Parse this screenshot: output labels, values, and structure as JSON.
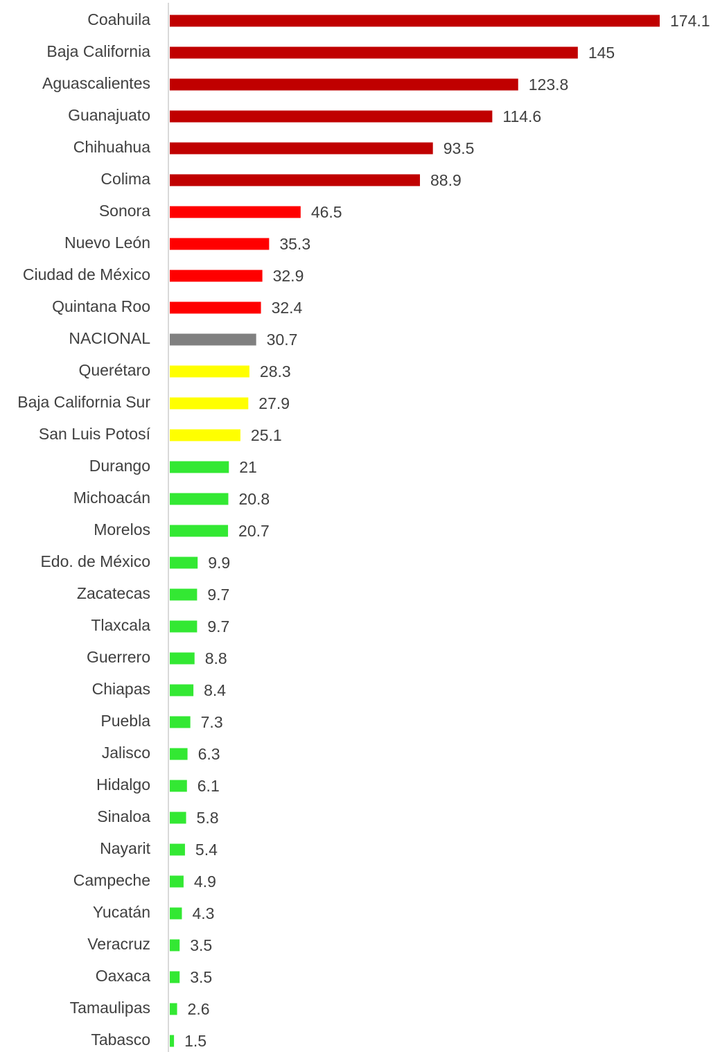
{
  "chart_data": {
    "type": "bar",
    "orientation": "horizontal",
    "categories": [
      "Coahuila",
      "Baja California",
      "Aguascalientes",
      "Guanajuato",
      "Chihuahua",
      "Colima",
      "Sonora",
      "Nuevo León",
      "Ciudad de México",
      "Quintana Roo",
      "NACIONAL",
      "Querétaro",
      "Baja California Sur",
      "San Luis Potosí",
      "Durango",
      "Michoacán",
      "Morelos",
      "Edo. de México",
      "Zacatecas",
      "Tlaxcala",
      "Guerrero",
      "Chiapas",
      "Puebla",
      "Jalisco",
      "Hidalgo",
      "Sinaloa",
      "Nayarit",
      "Campeche",
      "Yucatán",
      "Veracruz",
      "Oaxaca",
      "Tamaulipas",
      "Tabasco"
    ],
    "values": [
      174.1,
      145,
      123.8,
      114.6,
      93.5,
      88.9,
      46.5,
      35.3,
      32.9,
      32.4,
      30.7,
      28.3,
      27.9,
      25.1,
      21,
      20.8,
      20.7,
      9.9,
      9.7,
      9.7,
      8.8,
      8.4,
      7.3,
      6.3,
      6.1,
      5.8,
      5.4,
      4.9,
      4.3,
      3.5,
      3.5,
      2.6,
      1.5
    ],
    "colors": [
      "#c00000",
      "#c00000",
      "#c00000",
      "#c00000",
      "#c00000",
      "#c00000",
      "#ff0000",
      "#ff0000",
      "#ff0000",
      "#ff0000",
      "#808080",
      "#ffff00",
      "#ffff00",
      "#ffff00",
      "#33e833",
      "#33e833",
      "#33e833",
      "#33e833",
      "#33e833",
      "#33e833",
      "#33e833",
      "#33e833",
      "#33e833",
      "#33e833",
      "#33e833",
      "#33e833",
      "#33e833",
      "#33e833",
      "#33e833",
      "#33e833",
      "#33e833",
      "#33e833",
      "#33e833"
    ]
  }
}
